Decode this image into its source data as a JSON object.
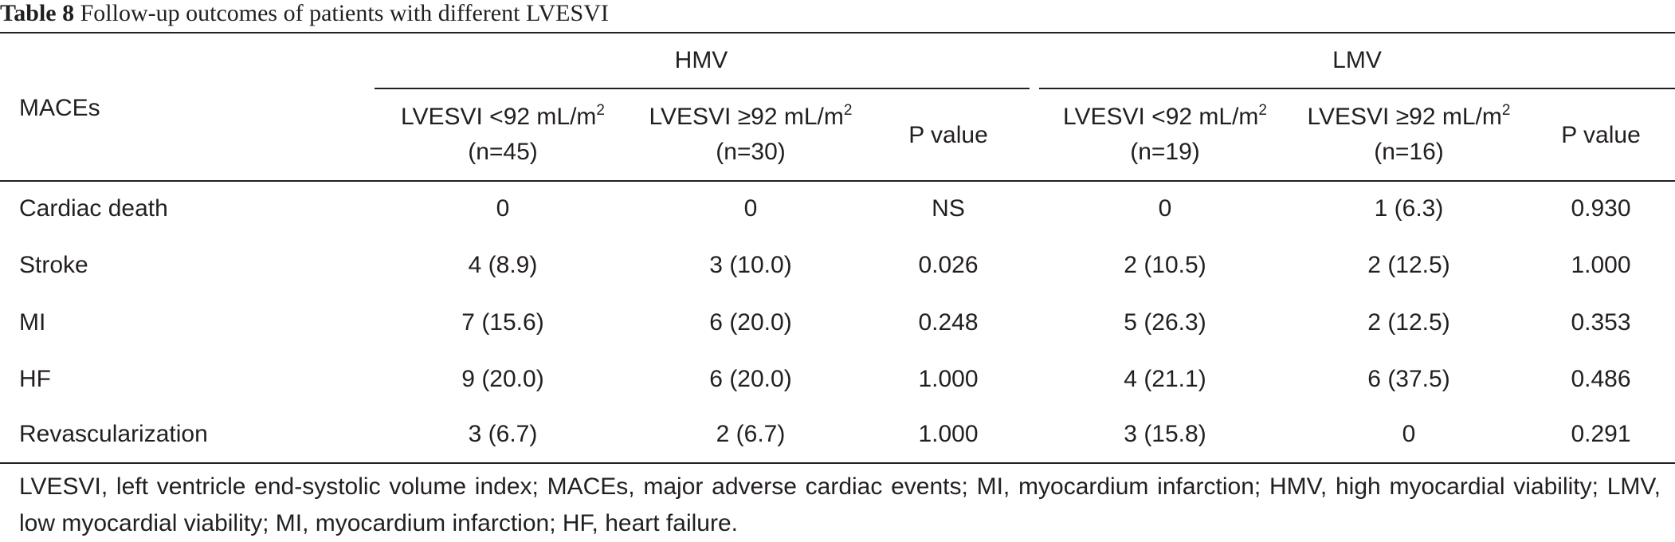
{
  "caption": {
    "label": "Table 8",
    "title": "Follow-up outcomes of patients with different LVESVI"
  },
  "header": {
    "row_label": "MACEs",
    "groups": [
      {
        "name": "HMV",
        "columns": [
          {
            "line1": "LVESVI <92 mL/m",
            "sup": "2",
            "line2": "(n=45)"
          },
          {
            "line1": "LVESVI ≥92 mL/m",
            "sup": "2",
            "line2": "(n=30)"
          },
          {
            "line1": "P value"
          }
        ]
      },
      {
        "name": "LMV",
        "columns": [
          {
            "line1": "LVESVI <92 mL/m",
            "sup": "2",
            "line2": "(n=19)"
          },
          {
            "line1": "LVESVI ≥92 mL/m",
            "sup": "2",
            "line2": "(n=16)"
          },
          {
            "line1": "P value"
          }
        ]
      }
    ]
  },
  "rows": [
    {
      "label": "Cardiac death",
      "values": [
        "0",
        "0",
        "NS",
        "0",
        "1 (6.3)",
        "0.930"
      ]
    },
    {
      "label": "Stroke",
      "values": [
        "4 (8.9)",
        "3 (10.0)",
        "0.026",
        "2 (10.5)",
        "2 (12.5)",
        "1.000"
      ]
    },
    {
      "label": "MI",
      "values": [
        "7 (15.6)",
        "6 (20.0)",
        "0.248",
        "5 (26.3)",
        "2 (12.5)",
        "0.353"
      ]
    },
    {
      "label": "HF",
      "values": [
        "9 (20.0)",
        "6 (20.0)",
        "1.000",
        "4 (21.1)",
        "6 (37.5)",
        "0.486"
      ]
    },
    {
      "label": "Revascularization",
      "values": [
        "3 (6.7)",
        "2 (6.7)",
        "1.000",
        "3 (15.8)",
        "0",
        "0.291"
      ]
    }
  ],
  "footnote": "LVESVI, left ventricle end-systolic volume index; MACEs, major adverse cardiac events; MI, myocardium infarction; HMV, high myocardial viability; LMV, low myocardial viability; MI, myocardium infarction; HF, heart failure."
}
